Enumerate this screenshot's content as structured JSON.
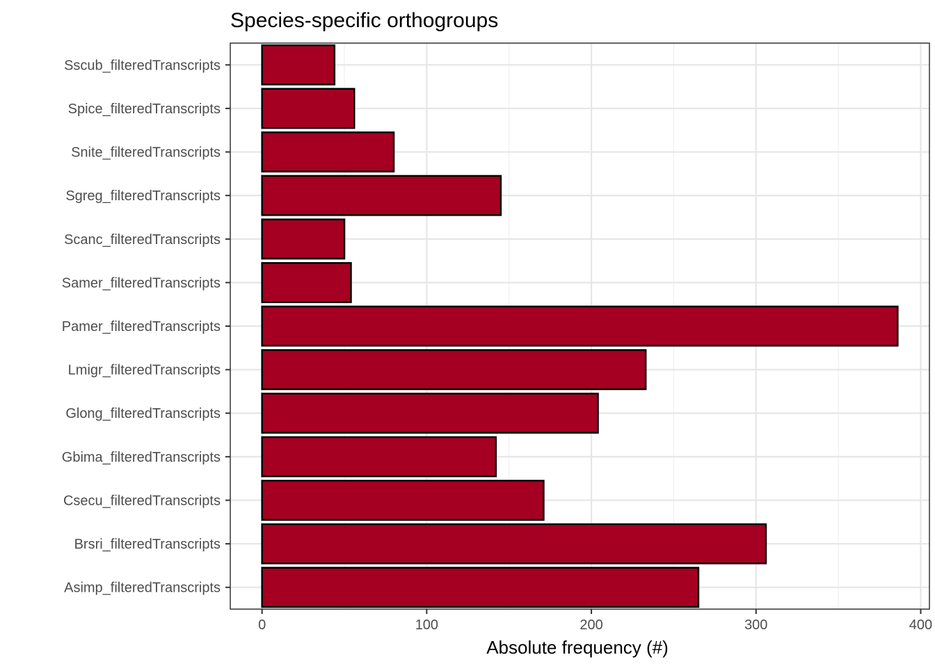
{
  "chart_data": {
    "type": "bar",
    "orientation": "horizontal",
    "title": "Species-specific orthogroups",
    "xlabel": "Absolute frequency (#)",
    "ylabel": "",
    "xlim": [
      -19.3,
      405.3
    ],
    "xticks": [
      0,
      100,
      200,
      300,
      400
    ],
    "grid": true,
    "bar_color": "#A50021",
    "categories": [
      "Sscub_filteredTranscripts",
      "Spice_filteredTranscripts",
      "Snite_filteredTranscripts",
      "Sgreg_filteredTranscripts",
      "Scanc_filteredTranscripts",
      "Samer_filteredTranscripts",
      "Pamer_filteredTranscripts",
      "Lmigr_filteredTranscripts",
      "Glong_filteredTranscripts",
      "Gbima_filteredTranscripts",
      "Csecu_filteredTranscripts",
      "Brsri_filteredTranscripts",
      "Asimp_filteredTranscripts"
    ],
    "values": [
      44,
      56,
      80,
      145,
      50,
      54,
      386,
      233,
      204,
      142,
      171,
      306,
      265
    ]
  }
}
